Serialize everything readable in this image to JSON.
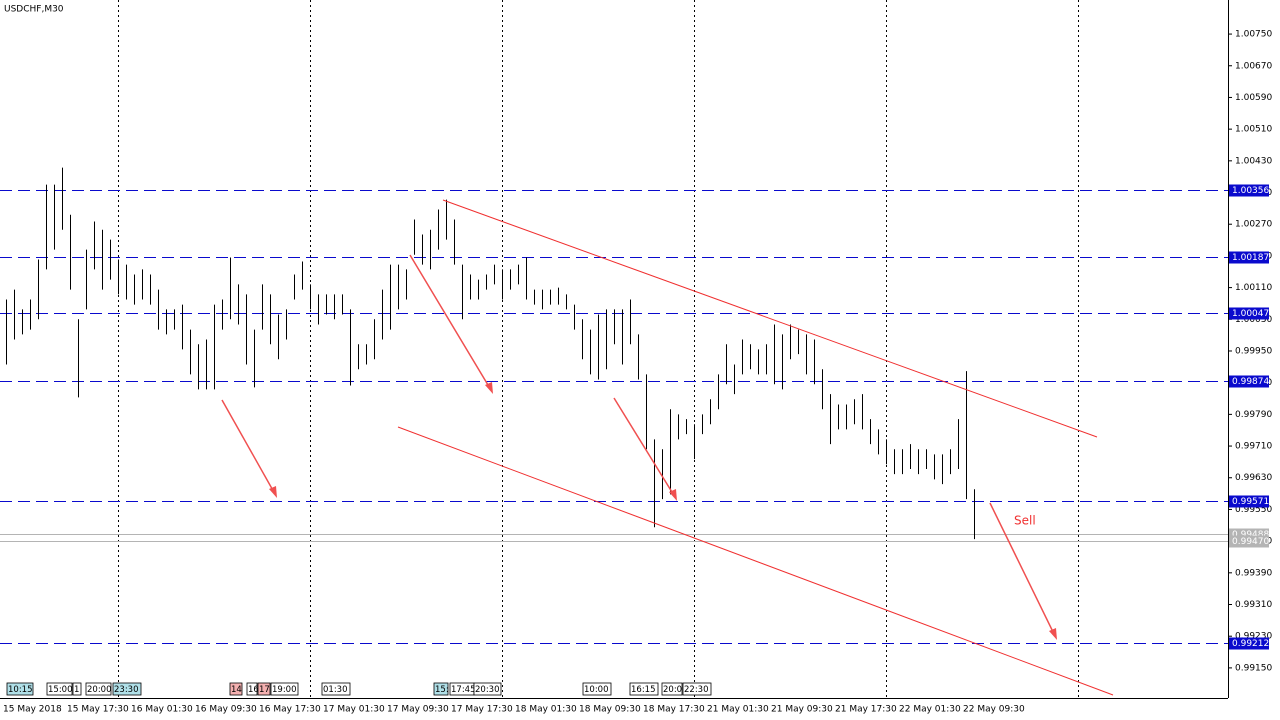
{
  "chart_data": {
    "type": "hilo",
    "title": "USDCHF,M30",
    "bar_color": "#000000",
    "high": [
      1.0008,
      1.00105,
      1.00055,
      1.0008,
      1.00181,
      1.0037,
      1.0037,
      1.00413,
      1.00294,
      1.0003,
      1.00206,
      1.00277,
      1.00256,
      1.00231,
      1.00181,
      1.00168,
      1.00143,
      1.00156,
      1.00143,
      1.00105,
      1.00055,
      1.00055,
      1.00067,
      1.00004,
      0.99967,
      0.99979,
      1.00067,
      1.0008,
      1.00186,
      1.00118,
      1.00093,
      1.00004,
      1.00118,
      1.00093,
      1.00042,
      1.00055,
      1.00143,
      1.00176,
      1.00118,
      1.00093,
      1.00093,
      1.00093,
      1.00093,
      1.00055,
      0.99967,
      0.99967,
      1.0003,
      1.00105,
      1.00168,
      1.00168,
      1.00156,
      1.00282,
      1.00244,
      1.00256,
      1.00307,
      1.00332,
      1.00282,
      1.00168,
      1.00143,
      1.0013,
      1.00143,
      1.00168,
      1.00156,
      1.00156,
      1.00168,
      1.00186,
      1.00105,
      1.00105,
      1.00105,
      1.0011,
      1.00093,
      1.00067,
      1.0003,
      1.00004,
      1.00042,
      1.00055,
      1.00055,
      1.00055,
      1.0008,
      0.99992,
      0.99891,
      0.99727,
      0.99702,
      0.99803,
      0.9979,
      0.99778,
      0.99765,
      0.9979,
      0.99828,
      0.99891,
      0.99967,
      0.99916,
      0.99979,
      0.99967,
      0.99954,
      0.99967,
      1.00017,
      0.99992,
      1.00017,
      1.00004,
      0.99992,
      0.99979,
      0.99904,
      0.99841,
      0.99815,
      0.99815,
      0.99828,
      0.99841,
      0.99778,
      0.99752,
      0.99727,
      0.99702,
      0.99702,
      0.99715,
      0.99702,
      0.99702,
      0.99689,
      0.99689,
      0.99702,
      0.99778,
      0.99899,
      0.99601
    ],
    "low": [
      0.99916,
      0.99979,
      0.99992,
      1.00004,
      1.0003,
      1.00156,
      1.00206,
      1.00256,
      1.00105,
      0.99833,
      1.00055,
      1.00156,
      1.00105,
      1.0013,
      1.00093,
      1.0008,
      1.00067,
      1.0008,
      1.00067,
      1.00004,
      0.99992,
      1.00004,
      0.99954,
      0.99891,
      0.99853,
      0.99853,
      0.99853,
      1.00004,
      1.0003,
      1.00017,
      0.99916,
      0.99858,
      1.00004,
      0.99967,
      0.99929,
      0.99979,
      1.0008,
      1.00105,
      1.00055,
      1.00017,
      1.00042,
      1.0003,
      1.00042,
      0.99863,
      0.99904,
      0.99916,
      0.99929,
      0.99979,
      1.00004,
      1.00055,
      1.0008,
      1.00193,
      1.00168,
      1.00156,
      1.00206,
      1.00231,
      1.00168,
      1.0003,
      1.0008,
      1.0008,
      1.00105,
      1.00118,
      1.0008,
      1.00105,
      1.00118,
      1.0008,
      1.00067,
      1.00055,
      1.00067,
      1.00067,
      1.00055,
      1.00004,
      0.99929,
      0.99891,
      0.99878,
      0.99904,
      0.99967,
      0.99916,
      0.99967,
      0.99878,
      0.99702,
      0.99505,
      0.99576,
      0.99588,
      0.99727,
      0.9974,
      0.99677,
      0.9974,
      0.99765,
      0.99803,
      0.99866,
      0.99841,
      0.99891,
      0.99904,
      0.99891,
      0.99891,
      0.99866,
      0.99853,
      0.99929,
      0.99942,
      0.99891,
      0.99866,
      0.99803,
      0.99715,
      0.99752,
      0.99752,
      0.99765,
      0.99752,
      0.99715,
      0.99689,
      0.99664,
      0.99639,
      0.99639,
      0.99652,
      0.99639,
      0.99652,
      0.99626,
      0.99614,
      0.99639,
      0.99652,
      0.99576,
      0.99475
    ],
    "x_labels": [
      "15 May 2018",
      "15 May 17:30",
      "16 May 01:30",
      "16 May 09:30",
      "16 May 17:30",
      "17 May 01:30",
      "17 May 09:30",
      "17 May 17:30",
      "18 May 01:30",
      "18 May 09:30",
      "18 May 17:30",
      "21 May 01:30",
      "21 May 09:30",
      "21 May 17:30",
      "22 May 01:30",
      "22 May 09:30"
    ],
    "events": [
      "10:15",
      "15:00",
      "1",
      "20:00",
      "23:30",
      "14",
      "16",
      "17",
      "19:00",
      "01:30",
      "15:",
      "17:45",
      "20:30",
      "10:00",
      "16:15",
      "20:0",
      "22:30"
    ],
    "ylim": [
      0.99074,
      1.00836
    ],
    "yticks": [
      {
        "value": 1.0075,
        "label": "1.00750"
      },
      {
        "value": 1.0067,
        "label": "1.00670"
      },
      {
        "value": 1.0059,
        "label": "1.00590"
      },
      {
        "value": 1.0051,
        "label": "1.00510"
      },
      {
        "value": 1.0043,
        "label": "1.00430"
      },
      {
        "value": 1.0035,
        "label": "1.00350"
      },
      {
        "value": 1.0027,
        "label": "1.00270"
      },
      {
        "value": 1.0019,
        "label": "1.00190"
      },
      {
        "value": 1.0011,
        "label": "1.00110"
      },
      {
        "value": 1.0003,
        "label": "1.00030"
      },
      {
        "value": 0.9995,
        "label": "0.99950"
      },
      {
        "value": 0.9987,
        "label": "0.99870"
      },
      {
        "value": 0.9979,
        "label": "0.99790"
      },
      {
        "value": 0.9971,
        "label": "0.99710"
      },
      {
        "value": 0.9963,
        "label": "0.99630"
      },
      {
        "value": 0.9955,
        "label": "0.99550"
      },
      {
        "value": 0.9947,
        "label": "0.99470"
      },
      {
        "value": 0.9939,
        "label": "0.99390"
      },
      {
        "value": 0.9931,
        "label": "0.99310"
      },
      {
        "value": 0.9923,
        "label": "0.99230"
      },
      {
        "value": 0.9915,
        "label": "0.99150"
      }
    ],
    "levels": [
      1.00356,
      1.00187,
      1.00047,
      0.99874,
      0.99571,
      0.99212
    ],
    "level_color": "#0a0acd",
    "current_prices": [
      0.99488,
      {
        "value": 0.9947,
        "label": "0.99470"
      }
    ],
    "current_color": "#b4b4b4",
    "annotation": "Sell"
  }
}
